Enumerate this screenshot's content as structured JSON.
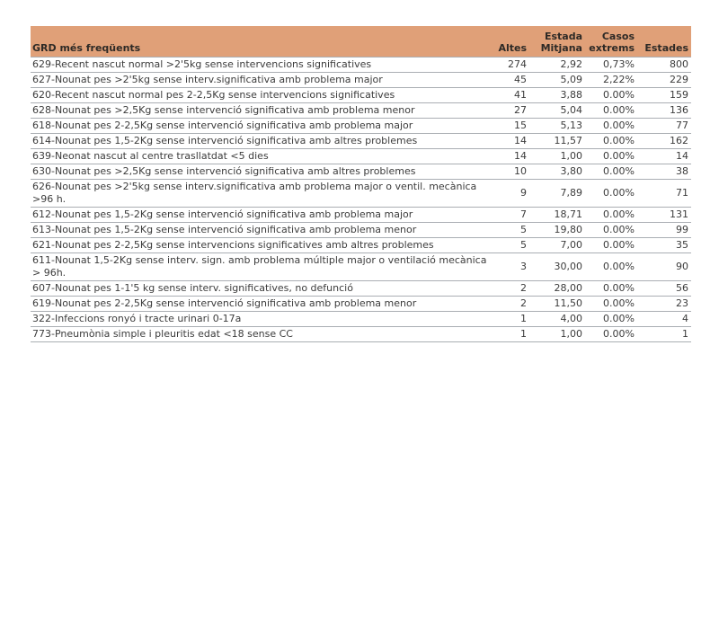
{
  "colors": {
    "header_bg": "#e0a078",
    "header_text": "#2e2a26",
    "row_text": "#3c3c3c",
    "row_border": "#aaaeb3"
  },
  "chart_data": {
    "type": "table",
    "title": "GRD més freqüents",
    "columns": [
      {
        "key": "grd",
        "label": "GRD més freqüents"
      },
      {
        "key": "altes",
        "label": "Altes"
      },
      {
        "key": "estada_mitjana",
        "label": "Estada\nMitjana"
      },
      {
        "key": "casos_extrems",
        "label": "Casos\nextrems"
      },
      {
        "key": "estades",
        "label": "Estades"
      }
    ],
    "rows": [
      [
        "629-Recent nascut normal >2'5kg sense intervencions significatives",
        "274",
        "2,92",
        "0,73%",
        "800"
      ],
      [
        "627-Nounat pes >2'5kg sense interv.significativa amb problema major",
        "45",
        "5,09",
        "2,22%",
        "229"
      ],
      [
        "620-Recent nascut normal pes 2-2,5Kg sense intervencions significatives",
        "41",
        "3,88",
        "0.00%",
        "159"
      ],
      [
        "628-Nounat pes >2,5Kg sense intervenció significativa amb problema menor",
        "27",
        "5,04",
        "0.00%",
        "136"
      ],
      [
        "618-Nounat pes 2-2,5Kg sense intervenció significativa amb problema major",
        "15",
        "5,13",
        "0.00%",
        "77"
      ],
      [
        "614-Nounat pes 1,5-2Kg sense intervenció significativa amb altres problemes",
        "14",
        "11,57",
        "0.00%",
        "162"
      ],
      [
        "639-Neonat nascut al centre trasllatdat <5 dies",
        "14",
        "1,00",
        "0.00%",
        "14"
      ],
      [
        "630-Nounat pes >2,5Kg sense intervenció significativa amb altres problemes",
        "10",
        "3,80",
        "0.00%",
        "38"
      ],
      [
        "626-Nounat pes >2'5kg sense interv.significativa amb problema major o ventil. mecànica >96 h.",
        "9",
        "7,89",
        "0.00%",
        "71"
      ],
      [
        "612-Nounat pes 1,5-2Kg sense intervenció significativa amb problema major",
        "7",
        "18,71",
        "0.00%",
        "131"
      ],
      [
        "613-Nounat pes 1,5-2Kg sense intervenció significativa amb problema menor",
        "5",
        "19,80",
        "0.00%",
        "99"
      ],
      [
        "621-Nounat pes 2-2,5Kg sense intervencions significatives amb altres problemes",
        "5",
        "7,00",
        "0.00%",
        "35"
      ],
      [
        "611-Nounat 1,5-2Kg sense interv. sign. amb problema múltiple major o ventilació mecànica > 96h.",
        "3",
        "30,00",
        "0.00%",
        "90"
      ],
      [
        "607-Nounat pes 1-1'5 kg sense interv. significatives, no defunció",
        "2",
        "28,00",
        "0.00%",
        "56"
      ],
      [
        "619-Nounat pes 2-2,5Kg sense intervenció significativa amb problema menor",
        "2",
        "11,50",
        "0.00%",
        "23"
      ],
      [
        "322-Infeccions ronyó i tracte urinari 0-17a",
        "1",
        "4,00",
        "0.00%",
        "4"
      ],
      [
        "773-Pneumònia simple i pleuritis edat <18 sense CC",
        "1",
        "1,00",
        "0.00%",
        "1"
      ]
    ]
  }
}
